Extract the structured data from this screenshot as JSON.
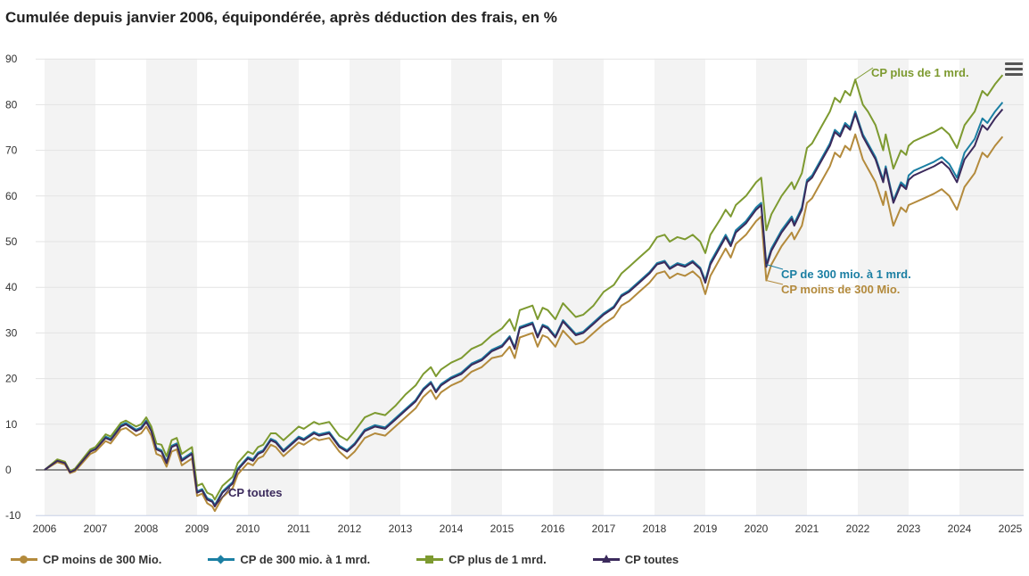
{
  "title": "Cumulée depuis janvier 2006, équipondérée, après déduction des frais, en %",
  "menu_icon": "hamburger-menu-icon",
  "chart_data": {
    "type": "line",
    "title": "Cumulée depuis janvier 2006, équipondérée, après déduction des frais, en %",
    "xlabel": "",
    "ylabel": "",
    "xlim": [
      2006,
      2025
    ],
    "ylim": [
      -10,
      90
    ],
    "x_ticks": [
      "2006",
      "2007",
      "2008",
      "2009",
      "2010",
      "2011",
      "2012",
      "2013",
      "2014",
      "2015",
      "2016",
      "2017",
      "2018",
      "2019",
      "2020",
      "2021",
      "2022",
      "2023",
      "2024",
      "2025"
    ],
    "y_ticks": [
      -10,
      0,
      10,
      20,
      30,
      40,
      50,
      60,
      70,
      80,
      90
    ],
    "grid": "horizontal lines, alternating year bands",
    "legend_position": "bottom",
    "x": [
      2006.0,
      2006.25,
      2006.4,
      2006.5,
      2006.6,
      2006.9,
      2007.0,
      2007.2,
      2007.3,
      2007.5,
      2007.6,
      2007.8,
      2007.9,
      2008.0,
      2008.1,
      2008.2,
      2008.3,
      2008.4,
      2008.5,
      2008.6,
      2008.7,
      2008.9,
      2009.0,
      2009.1,
      2009.2,
      2009.3,
      2009.35,
      2009.5,
      2009.7,
      2009.8,
      2010.0,
      2010.1,
      2010.2,
      2010.3,
      2010.45,
      2010.55,
      2010.7,
      2010.8,
      2011.0,
      2011.1,
      2011.3,
      2011.4,
      2011.6,
      2011.8,
      2011.95,
      2012.1,
      2012.3,
      2012.5,
      2012.7,
      2012.9,
      2013.1,
      2013.3,
      2013.45,
      2013.6,
      2013.7,
      2013.8,
      2014.0,
      2014.2,
      2014.4,
      2014.6,
      2014.8,
      2015.0,
      2015.15,
      2015.25,
      2015.35,
      2015.6,
      2015.7,
      2015.8,
      2015.9,
      2016.05,
      2016.2,
      2016.45,
      2016.6,
      2016.8,
      2017.0,
      2017.2,
      2017.35,
      2017.5,
      2017.7,
      2017.9,
      2018.05,
      2018.2,
      2018.3,
      2018.45,
      2018.6,
      2018.75,
      2018.9,
      2019.0,
      2019.1,
      2019.3,
      2019.4,
      2019.5,
      2019.6,
      2019.8,
      2019.9,
      2020.0,
      2020.1,
      2020.2,
      2020.3,
      2020.5,
      2020.7,
      2020.75,
      2020.9,
      2021.0,
      2021.1,
      2021.3,
      2021.45,
      2021.55,
      2021.65,
      2021.75,
      2021.85,
      2021.95,
      2022.1,
      2022.2,
      2022.35,
      2022.5,
      2022.55,
      2022.7,
      2022.85,
      2022.95,
      2023.0,
      2023.1,
      2023.3,
      2023.5,
      2023.65,
      2023.8,
      2023.95,
      2024.1,
      2024.3,
      2024.45,
      2024.55,
      2024.7,
      2024.85
    ],
    "series": [
      {
        "name": "CP moins de 300 Mio.",
        "color": "#b38a3c",
        "marker": "circle",
        "values": [
          0,
          1.7,
          1.2,
          -0.7,
          -0.3,
          3.5,
          4,
          6.3,
          5.8,
          8.8,
          9.2,
          7.5,
          8,
          9.5,
          7.5,
          3.5,
          3,
          0.7,
          4,
          4.5,
          1,
          2.5,
          -5.7,
          -5.2,
          -7.3,
          -8,
          -9,
          -6,
          -4,
          -1,
          1.5,
          1,
          2.5,
          3,
          5.5,
          5,
          3,
          4,
          6,
          5.5,
          7,
          6.5,
          7,
          4,
          2.5,
          4,
          7,
          8,
          7.5,
          9.5,
          11.5,
          13.5,
          16,
          17.5,
          15.5,
          17,
          18.5,
          19.5,
          21.5,
          22.5,
          24.5,
          25,
          27,
          24.5,
          29,
          30,
          27,
          29.5,
          29,
          27,
          30.5,
          27.5,
          28,
          30,
          32,
          33.5,
          36,
          37,
          39,
          41,
          43,
          43.5,
          42,
          43,
          42.5,
          43.5,
          42,
          38.5,
          42.5,
          46.5,
          48.5,
          46.5,
          49.5,
          51.5,
          53,
          54.5,
          55.5,
          41.5,
          45,
          49,
          52,
          50.5,
          53.5,
          58.5,
          59.5,
          63.5,
          66.5,
          69.5,
          68.5,
          71,
          70,
          73.5,
          68,
          66,
          63,
          58,
          61,
          53.5,
          57.5,
          56.5,
          58,
          58.5,
          59.5,
          60.5,
          61.5,
          60,
          57,
          62,
          65,
          69.5,
          68.5,
          71,
          73
        ]
      },
      {
        "name": "CP de 300 mio. à 1 mrd.",
        "color": "#1b7fa3",
        "marker": "diamond",
        "values": [
          0,
          2.2,
          1.7,
          -0.4,
          0.1,
          4.2,
          4.7,
          7.3,
          6.8,
          9.8,
          10.3,
          8.8,
          9.3,
          10.8,
          8.8,
          4.8,
          4.3,
          1.8,
          5.3,
          5.8,
          2.3,
          3.8,
          -4.7,
          -4.2,
          -6.2,
          -6.7,
          -7.7,
          -4.7,
          -2.7,
          0.3,
          2.8,
          2.3,
          3.8,
          4.3,
          6.8,
          6.3,
          4.3,
          5.3,
          7.3,
          6.8,
          8.3,
          7.8,
          8.3,
          5.3,
          4.3,
          5.8,
          8.8,
          9.8,
          9.3,
          11.3,
          13.3,
          15.3,
          17.8,
          19.3,
          17.3,
          18.8,
          20.3,
          21.3,
          23.3,
          24.3,
          26.3,
          27.3,
          29.3,
          26.8,
          31.3,
          32.3,
          29.3,
          31.8,
          31.3,
          29.3,
          32.8,
          29.8,
          30.3,
          32.3,
          34.3,
          35.8,
          38.3,
          39.3,
          41.3,
          43.3,
          45.3,
          45.8,
          44.3,
          45.3,
          44.8,
          45.8,
          44.3,
          41.5,
          45.5,
          49.5,
          51.5,
          49.5,
          52.5,
          54.5,
          56,
          57.5,
          58.5,
          45,
          48.5,
          52.5,
          55.5,
          54,
          57.5,
          63.5,
          64.5,
          68.5,
          71.5,
          74.5,
          73.5,
          76,
          75,
          78.5,
          73.5,
          71.5,
          68.5,
          63.5,
          66.5,
          59,
          63,
          62,
          64.5,
          65.5,
          66.5,
          67.5,
          68.5,
          67,
          64,
          69.5,
          72.5,
          77,
          76,
          78.5,
          80.5
        ]
      },
      {
        "name": "CP plus de 1 mrd.",
        "color": "#7d9a30",
        "marker": "square",
        "values": [
          0,
          2.3,
          1.8,
          -0.3,
          0.3,
          4.5,
          5,
          7.8,
          7.3,
          10.3,
          10.8,
          9.5,
          10,
          11.5,
          9.5,
          5.8,
          5.5,
          3,
          6.5,
          7,
          3.5,
          5,
          -3.5,
          -3,
          -5,
          -5.5,
          -6.5,
          -3.5,
          -1.5,
          1.5,
          4,
          3.5,
          5,
          5.5,
          8,
          8,
          6.5,
          7.5,
          9.5,
          9,
          10.5,
          10,
          10.5,
          7.5,
          6.5,
          8.5,
          11.5,
          12.5,
          12,
          14,
          16.5,
          18.5,
          21,
          22.5,
          20.5,
          22,
          23.5,
          24.5,
          26.5,
          27.5,
          29.5,
          31,
          33,
          30.5,
          35,
          36,
          33,
          35.5,
          35,
          33,
          36.5,
          33.5,
          34,
          36,
          39,
          40.5,
          43,
          44.5,
          46.5,
          48.5,
          51,
          51.5,
          50,
          51,
          50.5,
          51.5,
          50,
          47.5,
          51.5,
          55,
          57,
          55.5,
          58,
          60,
          61.5,
          63,
          64,
          52.5,
          56,
          60,
          63,
          61.5,
          65,
          70.5,
          71.5,
          75.5,
          78.5,
          81.5,
          80.5,
          83,
          82,
          85.5,
          80,
          78.5,
          75.5,
          70,
          73.5,
          66,
          70,
          69,
          71,
          72,
          73,
          74,
          75,
          73.5,
          70.5,
          75.5,
          78.5,
          83,
          82,
          84.5,
          86.5
        ]
      },
      {
        "name": "CP toutes",
        "color": "#3b2a5c",
        "marker": "triangle",
        "values": [
          0,
          2,
          1.5,
          -0.5,
          0,
          4,
          4.5,
          7,
          6.5,
          9.5,
          10,
          8.5,
          9,
          10.5,
          8.5,
          4.5,
          4,
          1.5,
          5,
          5.5,
          2,
          3.5,
          -5,
          -4.5,
          -6.5,
          -7,
          -8,
          -5,
          -3,
          0,
          2.5,
          2,
          3.5,
          4,
          6.5,
          6,
          4,
          5,
          7,
          6.5,
          8,
          7.5,
          8,
          5,
          4,
          5.5,
          8.5,
          9.5,
          9,
          11,
          13,
          15,
          17.5,
          19,
          17,
          18.5,
          20,
          21,
          23,
          24,
          26,
          27,
          29,
          26.5,
          31,
          32,
          29,
          31.5,
          31,
          29,
          32.5,
          29.5,
          30,
          32,
          34,
          35.5,
          38,
          39,
          41,
          43,
          45,
          45.5,
          44,
          45,
          44.5,
          45.5,
          44,
          41,
          45,
          49,
          51,
          49,
          52,
          54,
          55.5,
          57,
          58,
          44.5,
          48,
          52,
          55,
          53.5,
          57,
          63,
          64,
          68,
          71,
          74,
          73,
          75.5,
          74.5,
          78,
          73,
          71,
          68,
          63,
          66,
          58.5,
          62.5,
          61.5,
          63.5,
          64.5,
          65.5,
          66.5,
          67.5,
          66,
          63,
          68,
          71,
          75.5,
          74.5,
          77,
          79
        ]
      }
    ],
    "annotations": [
      {
        "text": "CP plus de 1 mrd.",
        "series": "CP plus de 1 mrd.",
        "x": 2021.95
      },
      {
        "text": "CP de 300 mio. à 1 mrd.",
        "series": "CP de 300 mio. à 1 mrd.",
        "x": 2020.2
      },
      {
        "text": "CP moins de 300 Mio.",
        "series": "CP moins de 300 Mio.",
        "x": 2020.2
      },
      {
        "text": "CP toutes",
        "series": "CP toutes",
        "x": 2009.35
      }
    ]
  }
}
